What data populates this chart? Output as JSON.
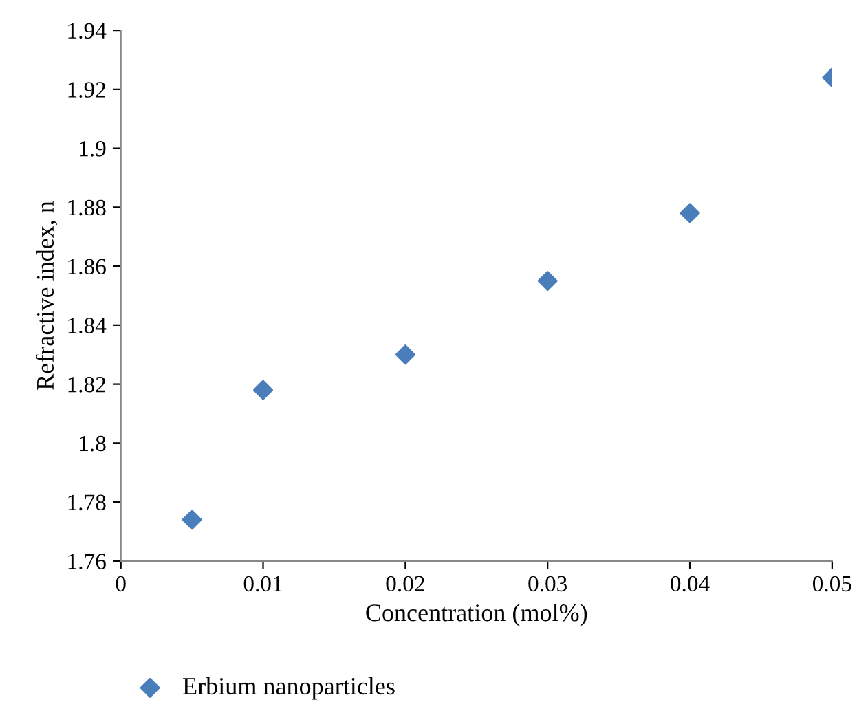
{
  "chart_data": {
    "type": "scatter",
    "xlabel": "Concentration (mol%)",
    "ylabel": "Refractive index, n",
    "x": [
      0.005,
      0.01,
      0.02,
      0.03,
      0.04,
      0.05
    ],
    "series": [
      {
        "name": "Erbium nanoparticles",
        "color": "#4a7ebb",
        "values": [
          1.774,
          1.818,
          1.83,
          1.855,
          1.878,
          1.924
        ]
      }
    ],
    "xlim": [
      0,
      0.05
    ],
    "xticks": [
      0,
      0.01,
      0.02,
      0.03,
      0.04,
      0.05
    ],
    "ylim": [
      1.76,
      1.94
    ],
    "yticks": [
      1.76,
      1.78,
      1.8,
      1.82,
      1.84,
      1.86,
      1.88,
      1.9,
      1.92,
      1.94
    ],
    "marker": "diamond",
    "grid": false,
    "legend": "bottom left"
  }
}
